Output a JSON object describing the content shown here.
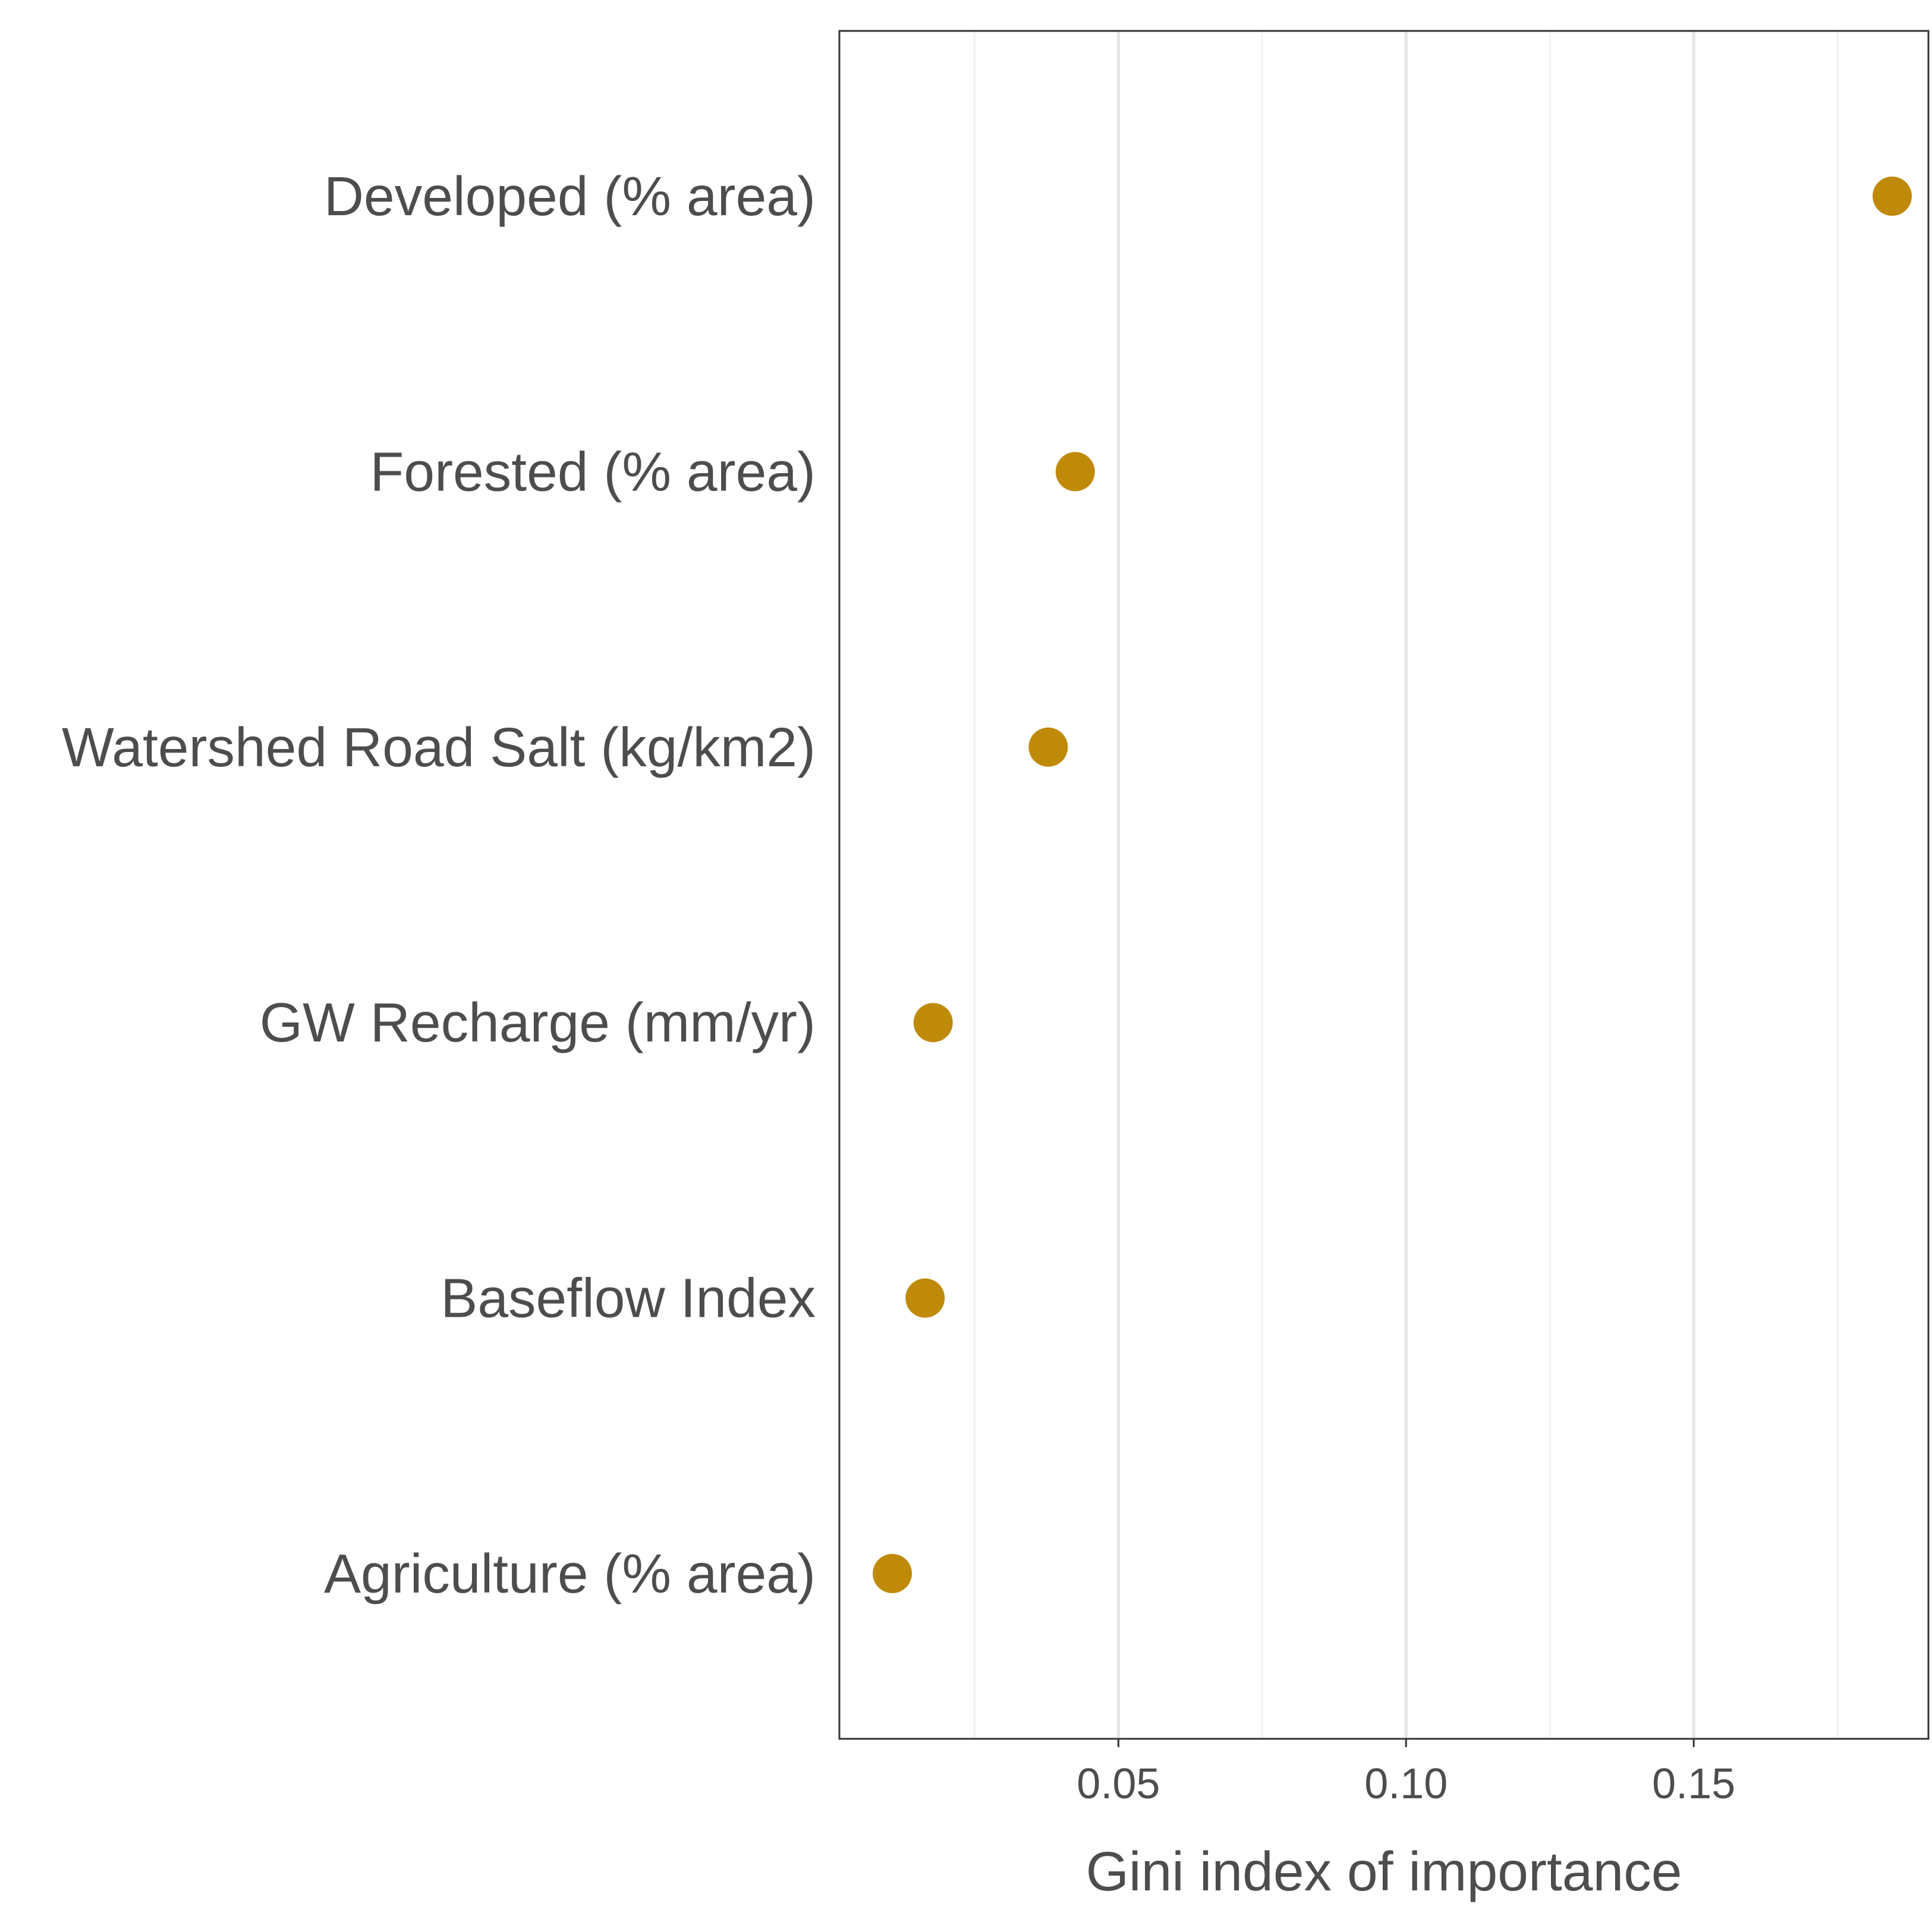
{
  "chart_data": {
    "type": "scatter",
    "orientation": "horizontal",
    "title": "",
    "xlabel": "Gini index of importance",
    "ylabel": "",
    "categories": [
      "Developed (% area)",
      "Forested (% area)",
      "Watershed Road Salt (kg/km2)",
      "GW Recharge (mm/yr)",
      "Baseflow Index",
      "Agriculture (% area)"
    ],
    "values": [
      0.1845,
      0.0425,
      0.0378,
      0.0178,
      0.0164,
      0.0107
    ],
    "xlim": [
      0.0015,
      0.1908
    ],
    "xticks": [
      0.05,
      0.1,
      0.15
    ],
    "xtick_labels": [
      "0.05",
      "0.10",
      "0.15"
    ],
    "x_minor_gridlines": [
      0.025,
      0.075,
      0.125,
      0.175
    ],
    "grid": "vertical",
    "legend": "none",
    "colors": {
      "point": "#C08A09",
      "panel_border": "#333333",
      "grid_major": "#e5e5e5",
      "grid_minor": "#f2f2f2",
      "text": "#4d4d4d"
    }
  }
}
